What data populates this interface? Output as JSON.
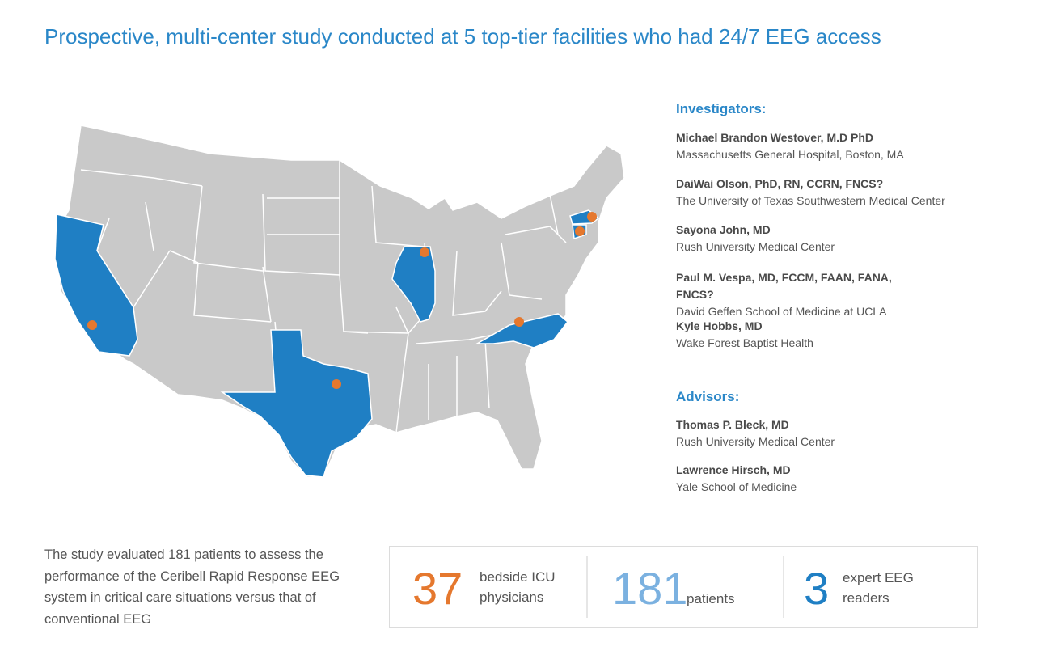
{
  "title": "Prospective, multi-center study conducted at 5 top-tier facilities who had 24/7 EEG access",
  "colors": {
    "accent_blue": "#2a87c8",
    "state_gray": "#c9c9c9",
    "highlight_blue": "#1f7fc4",
    "marker_orange": "#e5782e",
    "stat_light_blue": "#7bb1e0"
  },
  "map": {
    "highlighted_states": [
      "California",
      "Texas",
      "Illinois",
      "North Carolina",
      "Massachusetts",
      "Connecticut"
    ],
    "marker_count": 6
  },
  "investigators": {
    "heading": "Investigators:",
    "people": [
      {
        "name": "Michael Brandon Westover, M.D PhD",
        "org": "Massachusetts General Hospital, Boston, MA"
      },
      {
        "name": "DaiWai Olson, PhD, RN, CCRN, FNCS?",
        "org": "The University of Texas Southwestern Medical Center"
      },
      {
        "name": "Sayona John, MD",
        "org": "Rush University Medical Center"
      },
      {
        "name": "Paul M. Vespa, MD, FCCM, FAAN, FANA, FNCS?",
        "org": "David Geffen School of Medicine at UCLA"
      },
      {
        "name": "Kyle Hobbs, MD",
        "org": "Wake Forest Baptist Health"
      }
    ]
  },
  "advisors": {
    "heading": "Advisors:",
    "people": [
      {
        "name": "Thomas P. Bleck, MD",
        "org": "Rush University Medical Center"
      },
      {
        "name": "Lawrence Hirsch, MD",
        "org": "Yale School of Medicine"
      }
    ]
  },
  "summary": "The study evaluated 181 patients to assess the performance of the Ceribell Rapid Response EEG system in critical care situations versus that of conventional EEG",
  "stats": [
    {
      "value": "37",
      "label_line1": "bedside ICU",
      "label_line2": "physicians",
      "color": "#e5782e"
    },
    {
      "value": "181",
      "label_line1": "patients",
      "label_line2": "",
      "color": "#7bb1e0"
    },
    {
      "value": "3",
      "label_line1": "expert EEG",
      "label_line2": "readers",
      "color": "#1f7fc4"
    }
  ]
}
